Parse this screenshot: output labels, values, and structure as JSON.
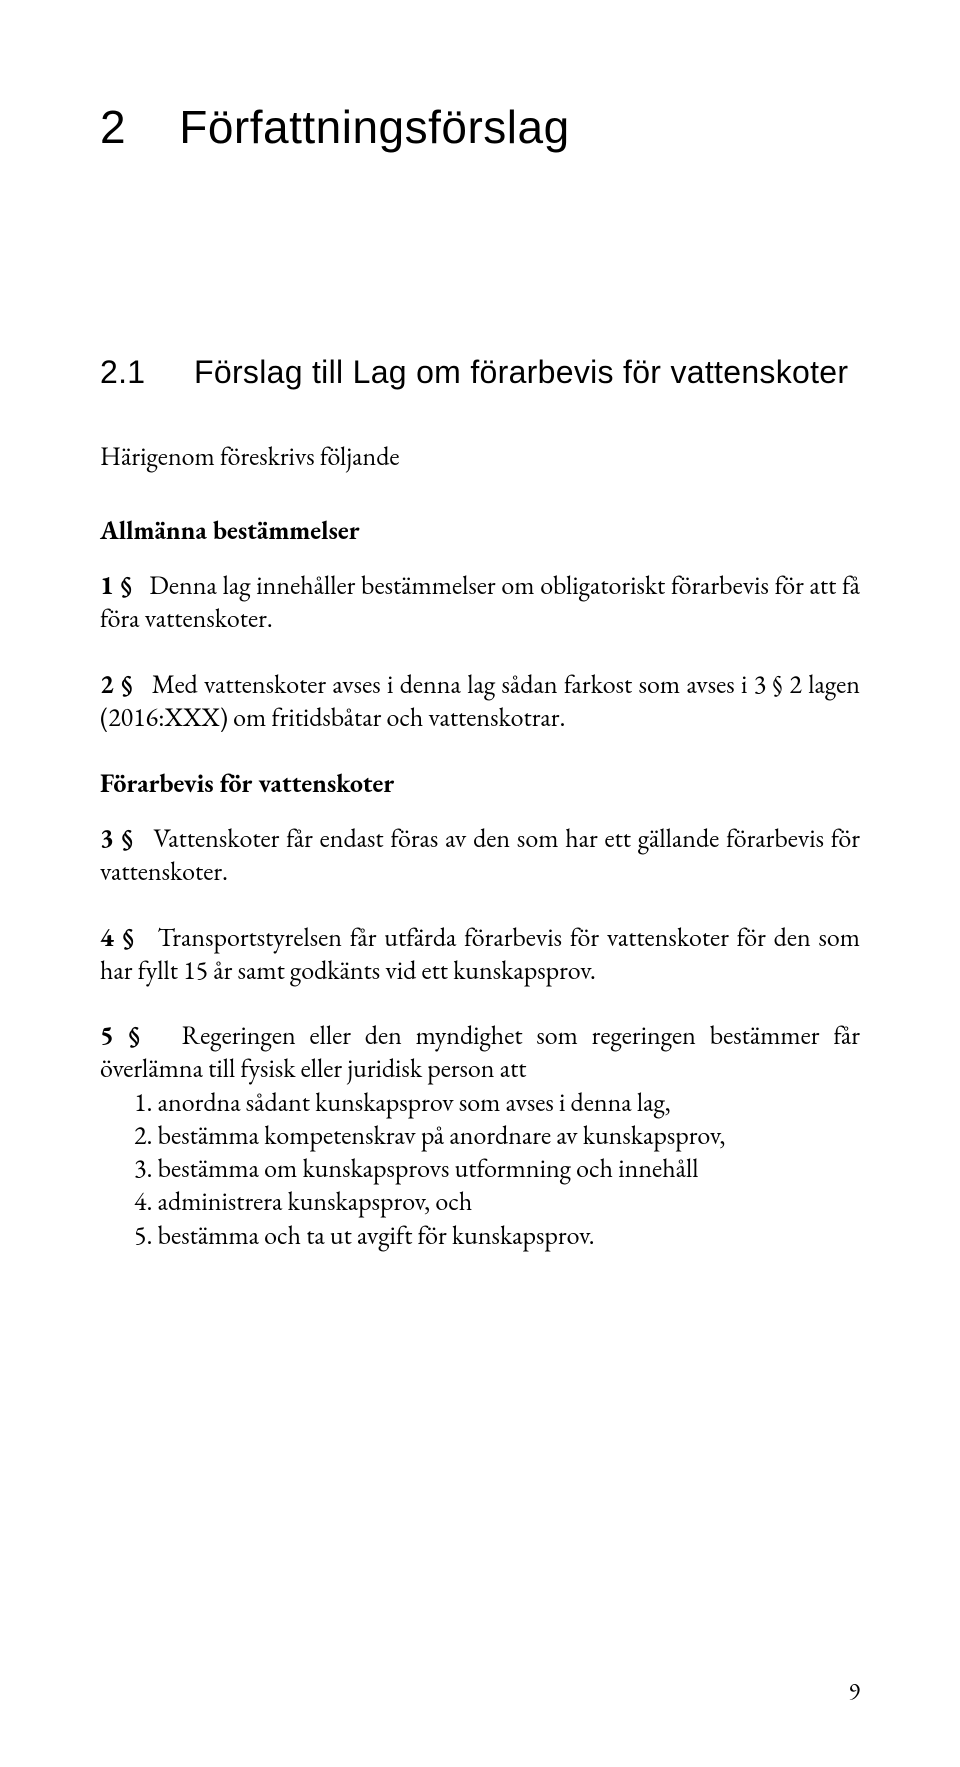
{
  "chapter": {
    "number": "2",
    "title": "Författningsförslag"
  },
  "section": {
    "number": "2.1",
    "title": "Förslag till Lag om förarbevis för vattenskoter"
  },
  "intro": "Härigenom föreskrivs följande",
  "sub1": "Allmänna bestämmelser",
  "p1": {
    "ref": "1 §",
    "text": "Denna lag innehåller bestämmelser om obligatoriskt förarbevis för att få föra vattenskoter."
  },
  "p2": {
    "ref": "2 §",
    "text": "Med vattenskoter avses i denna lag sådan farkost som avses i 3 § 2 lagen (2016:XXX) om fritidsbåtar och vattenskotrar."
  },
  "sub2": "Förarbevis för vattenskoter",
  "p3": {
    "ref": "3 §",
    "text": "Vattenskoter får endast föras av den som har ett gällande förarbevis för vattenskoter."
  },
  "p4": {
    "ref": "4 §",
    "text": "Transportstyrelsen får utfärda förarbevis för vattenskoter för den som har fyllt 15 år samt godkänts vid ett kunskapsprov."
  },
  "p5": {
    "ref": "5 §",
    "text": "Regeringen eller den myndighet som regeringen bestämmer får överlämna till fysisk eller juridisk person att"
  },
  "li1": "1. anordna sådant kunskapsprov som avses i denna lag,",
  "li2": "2. bestämma kompetenskrav på anordnare av kunskapsprov,",
  "li3": "3. bestämma om kunskapsprovs utformning och innehåll",
  "li4": "4. administrera kunskapsprov, och",
  "li5": "5. bestämma och ta ut avgift för kunskapsprov.",
  "pageNumber": "9"
}
